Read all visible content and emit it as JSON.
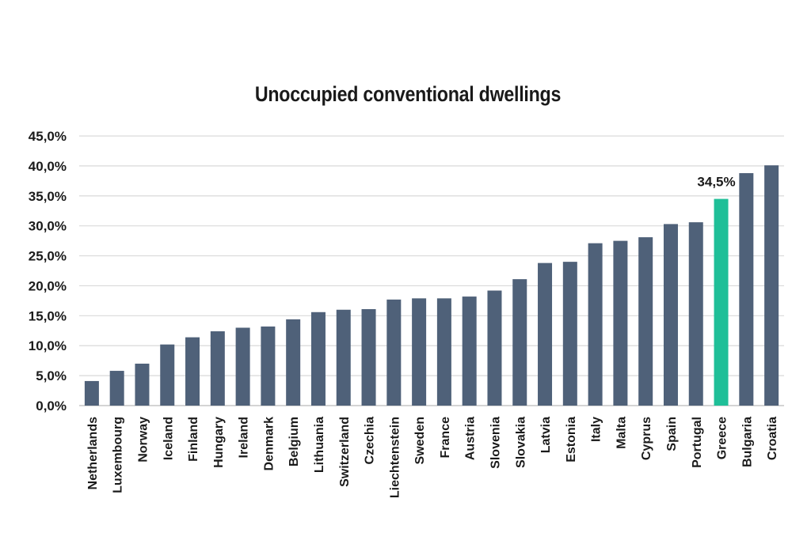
{
  "chart_data": {
    "type": "bar",
    "title": "Unoccupied conventional dwellings",
    "xlabel": "",
    "ylabel": "",
    "ylim": [
      0,
      45
    ],
    "yticks": [
      "0,0%",
      "5,0%",
      "10,0%",
      "15,0%",
      "20,0%",
      "25,0%",
      "30,0%",
      "35,0%",
      "40,0%",
      "45,0%"
    ],
    "grid": true,
    "categories": [
      "Netherlands",
      "Luxembourg",
      "Norway",
      "Iceland",
      "Finland",
      "Hungary",
      "Ireland",
      "Denmark",
      "Belgium",
      "Lithuania",
      "Switzerland",
      "Czechia",
      "Liechtenstein",
      "Sweden",
      "France",
      "Austria",
      "Slovenia",
      "Slovakia",
      "Latvia",
      "Estonia",
      "Italy",
      "Malta",
      "Cyprus",
      "Spain",
      "Portugal",
      "Greece",
      "Bulgaria",
      "Croatia"
    ],
    "values": [
      4.1,
      5.8,
      7.0,
      10.2,
      11.4,
      12.4,
      13.0,
      13.2,
      14.4,
      15.6,
      16.0,
      16.1,
      17.7,
      17.9,
      17.9,
      18.2,
      19.2,
      21.1,
      23.8,
      24.0,
      27.1,
      27.5,
      28.1,
      30.3,
      30.6,
      34.5,
      38.8,
      40.1
    ],
    "highlight": {
      "category": "Greece",
      "label": "34,5%"
    },
    "colors": {
      "bar": "#4f6179",
      "highlight": "#1fbf98",
      "grid": "#d9d9d9"
    }
  }
}
